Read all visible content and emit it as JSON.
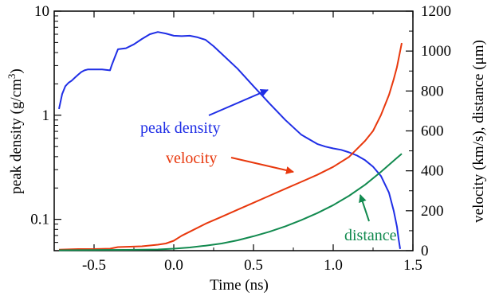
{
  "chart_data": {
    "type": "line",
    "xlabel": "Time (ns)",
    "ylabel_left": "peak density (g/cm",
    "ylabel_left_sup": "3",
    "ylabel_left_close": ")",
    "ylabel_right": "velocity (km/s), distance (μm)",
    "xlim": [
      -0.75,
      1.5
    ],
    "ylim_left": [
      0.05,
      10
    ],
    "yscale_left": "log",
    "ylim_right": [
      0,
      1200
    ],
    "xticks": [
      -0.5,
      0.0,
      0.5,
      1.0,
      1.5
    ],
    "xtick_labels": [
      "-0.5",
      "0.0",
      "0.5",
      "1.0",
      "1.5"
    ],
    "yticks_left": [
      0.1,
      1,
      10
    ],
    "yticks_left_labels": [
      "0.1",
      "1",
      "10"
    ],
    "yticks_right": [
      0,
      200,
      400,
      600,
      800,
      1000,
      1200
    ],
    "yticks_right_labels": [
      "0",
      "200",
      "400",
      "600",
      "800",
      "1000",
      "1200"
    ],
    "grid": false,
    "series": [
      {
        "name": "peak density",
        "axis": "left",
        "color": "#1f2ee6",
        "x": [
          -0.72,
          -0.7,
          -0.68,
          -0.66,
          -0.64,
          -0.62,
          -0.6,
          -0.58,
          -0.56,
          -0.54,
          -0.5,
          -0.45,
          -0.4,
          -0.39,
          -0.37,
          -0.35,
          -0.3,
          -0.25,
          -0.2,
          -0.15,
          -0.1,
          -0.05,
          0.0,
          0.05,
          0.1,
          0.15,
          0.2,
          0.25,
          0.3,
          0.4,
          0.5,
          0.6,
          0.7,
          0.8,
          0.9,
          0.95,
          1.0,
          1.05,
          1.1,
          1.15,
          1.2,
          1.25,
          1.3,
          1.35,
          1.38,
          1.4,
          1.41,
          1.42
        ],
        "y": [
          1.15,
          1.6,
          1.9,
          2.05,
          2.15,
          2.3,
          2.45,
          2.6,
          2.7,
          2.75,
          2.75,
          2.75,
          2.7,
          3.0,
          3.6,
          4.3,
          4.4,
          4.8,
          5.4,
          6.0,
          6.3,
          6.1,
          5.8,
          5.75,
          5.8,
          5.6,
          5.3,
          4.6,
          3.9,
          2.8,
          1.9,
          1.3,
          0.9,
          0.65,
          0.53,
          0.5,
          0.48,
          0.465,
          0.44,
          0.41,
          0.37,
          0.32,
          0.26,
          0.18,
          0.12,
          0.085,
          0.065,
          0.052
        ]
      },
      {
        "name": "velocity",
        "axis": "right",
        "color": "#e8380d",
        "x": [
          -0.72,
          -0.6,
          -0.5,
          -0.4,
          -0.35,
          -0.2,
          -0.1,
          -0.05,
          0.0,
          0.05,
          0.1,
          0.2,
          0.3,
          0.4,
          0.5,
          0.6,
          0.7,
          0.8,
          0.9,
          1.0,
          1.1,
          1.2,
          1.25,
          1.3,
          1.35,
          1.38,
          1.4,
          1.42,
          1.43
        ],
        "y": [
          5,
          8,
          8,
          10,
          18,
          22,
          30,
          36,
          50,
          75,
          95,
          135,
          170,
          205,
          240,
          275,
          310,
          345,
          380,
          420,
          470,
          550,
          600,
          680,
          780,
          860,
          920,
          1000,
          1040
        ]
      },
      {
        "name": "distance",
        "axis": "right",
        "color": "#128a4f",
        "x": [
          -0.72,
          -0.5,
          -0.3,
          -0.1,
          0.0,
          0.1,
          0.2,
          0.3,
          0.4,
          0.5,
          0.6,
          0.7,
          0.8,
          0.9,
          1.0,
          1.1,
          1.2,
          1.3,
          1.4,
          1.43
        ],
        "y": [
          2,
          3,
          4,
          6,
          10,
          16,
          25,
          36,
          52,
          72,
          95,
          122,
          153,
          188,
          228,
          275,
          330,
          395,
          465,
          485
        ]
      }
    ],
    "annotations": [
      {
        "text": "peak density",
        "series": "peak density",
        "color": "#1f2ee6"
      },
      {
        "text": "velocity",
        "series": "velocity",
        "color": "#e8380d"
      },
      {
        "text": "distance",
        "series": "distance",
        "color": "#128a4f"
      }
    ]
  }
}
